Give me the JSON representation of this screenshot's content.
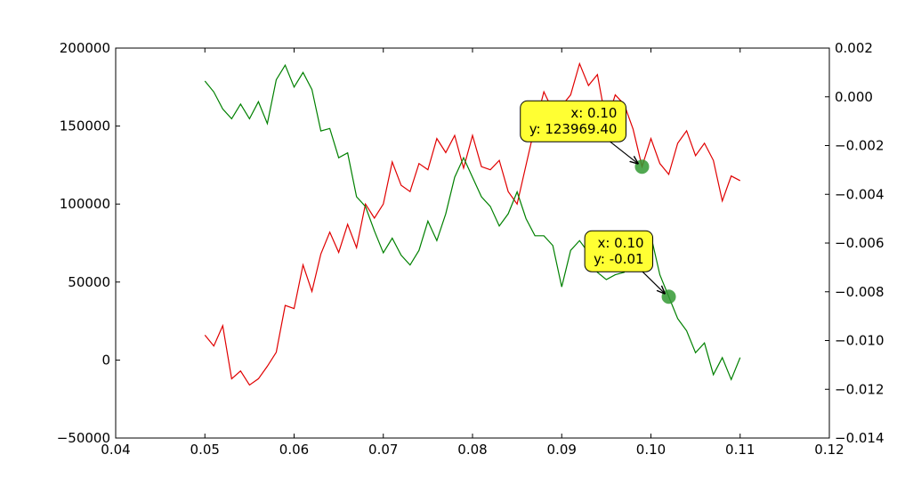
{
  "chart_data": {
    "type": "line",
    "x": [
      0.05,
      0.051,
      0.052,
      0.053,
      0.054,
      0.055,
      0.056,
      0.057,
      0.058,
      0.059,
      0.06,
      0.061,
      0.062,
      0.063,
      0.064,
      0.065,
      0.066,
      0.067,
      0.068,
      0.069,
      0.07,
      0.071,
      0.072,
      0.073,
      0.074,
      0.075,
      0.076,
      0.077,
      0.078,
      0.079,
      0.08,
      0.081,
      0.082,
      0.083,
      0.084,
      0.085,
      0.086,
      0.087,
      0.088,
      0.089,
      0.09,
      0.091,
      0.092,
      0.093,
      0.094,
      0.095,
      0.096,
      0.097,
      0.098,
      0.099,
      0.1,
      0.101,
      0.102,
      0.103,
      0.104,
      0.105,
      0.106,
      0.107,
      0.108,
      0.109,
      0.11
    ],
    "series": [
      {
        "color": "#e00000",
        "axis": "y",
        "values": [
          16000,
          9000,
          22000,
          -12000,
          -7000,
          -16000,
          -12000,
          -4000,
          5000,
          35000,
          33000,
          61000,
          44000,
          68000,
          82000,
          69000,
          87000,
          72000,
          100000,
          91000,
          100000,
          127000,
          112000,
          108000,
          126000,
          122000,
          142000,
          133000,
          144000,
          123000,
          144000,
          124000,
          122000,
          128000,
          108000,
          100000,
          125000,
          150000,
          172000,
          160000,
          163000,
          170000,
          190000,
          176000,
          183000,
          152000,
          170000,
          164000,
          148000,
          124000,
          142000,
          126000,
          119000,
          139000,
          147000,
          131000,
          139000,
          128000,
          102000,
          118000,
          115000
        ]
      },
      {
        "color": "#008000",
        "axis": "y2",
        "values": [
          0.00065,
          0.0002,
          -0.0005,
          -0.0009,
          -0.0003,
          -0.0009,
          -0.0002,
          -0.0011,
          0.0007,
          0.0013,
          0.0004,
          0.001,
          0.0003,
          -0.0014,
          -0.0013,
          -0.0025,
          -0.0023,
          -0.0041,
          -0.0045,
          -0.0055,
          -0.0064,
          -0.0058,
          -0.0065,
          -0.0069,
          -0.0063,
          -0.0051,
          -0.0059,
          -0.0048,
          -0.0033,
          -0.0025,
          -0.0033,
          -0.0041,
          -0.0045,
          -0.0053,
          -0.0048,
          -0.0039,
          -0.005,
          -0.0057,
          -0.0057,
          -0.0061,
          -0.0078,
          -0.0063,
          -0.0059,
          -0.0064,
          -0.0072,
          -0.0075,
          -0.0073,
          -0.0072,
          -0.0066,
          -0.0064,
          -0.0057,
          -0.0073,
          -0.0082,
          -0.0091,
          -0.0096,
          -0.0105,
          -0.0101,
          -0.0114,
          -0.0107,
          -0.0116,
          -0.0107
        ]
      }
    ],
    "xlim": [
      0.04,
      0.12
    ],
    "xticks": [
      0.04,
      0.05,
      0.06,
      0.07,
      0.08,
      0.09,
      {
        "value": 0.1,
        "label": "0.10"
      },
      0.11,
      0.12
    ],
    "ylim": [
      -50000,
      200000
    ],
    "yticks": [
      {
        "value": -50000,
        "label": "−50000"
      },
      0,
      50000,
      100000,
      150000,
      200000
    ],
    "y2lim": [
      -0.014,
      0.002
    ],
    "y2ticks": [
      {
        "value": -0.014,
        "label": "−0.014"
      },
      {
        "value": -0.012,
        "label": "−0.012"
      },
      {
        "value": -0.01,
        "label": "−0.010"
      },
      {
        "value": -0.008,
        "label": "−0.008"
      },
      {
        "value": -0.006,
        "label": "−0.006"
      },
      {
        "value": -0.004,
        "label": "−0.004"
      },
      {
        "value": -0.002,
        "label": "−0.002"
      },
      {
        "value": 0,
        "label": "0.000"
      },
      0.002
    ],
    "annotations": [
      {
        "lines": [
          "x: 0.10",
          "y: 123969.40"
        ],
        "x": 0.099,
        "y": 123969.4,
        "axis": "y",
        "color": "#ffff33"
      },
      {
        "lines": [
          "x: 0.10",
          "y: -0.01"
        ],
        "x": 0.102,
        "y": -0.0082,
        "axis": "y2",
        "color": "#ffff33"
      }
    ]
  }
}
